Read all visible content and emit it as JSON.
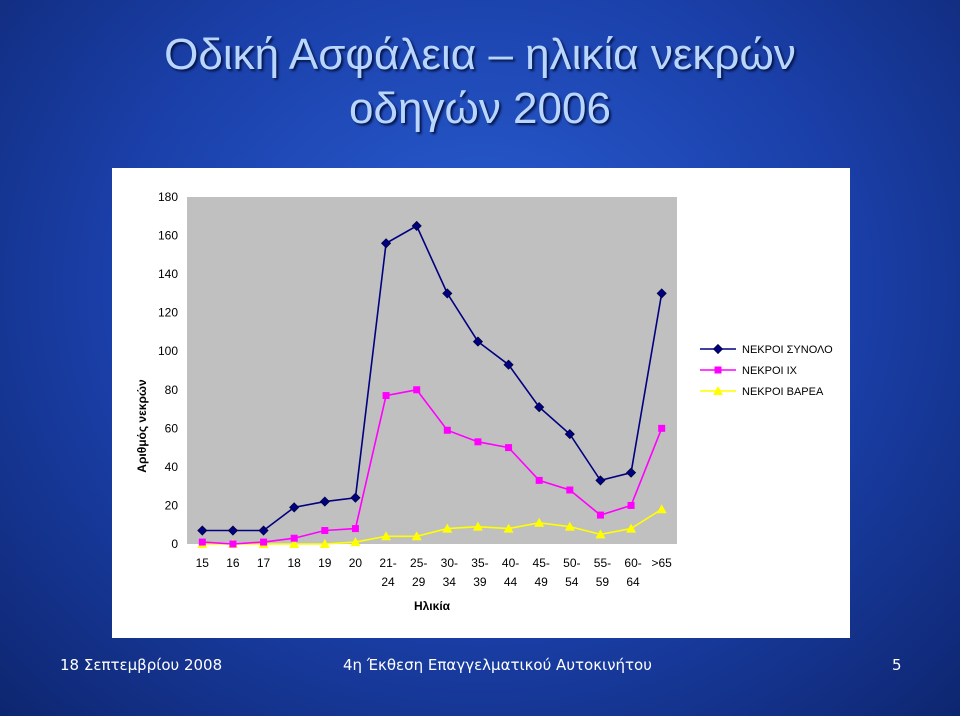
{
  "slide": {
    "title_line1": "Οδική Ασφάλεια – ηλικία νεκρών",
    "title_line2": "οδηγών 2006",
    "footer_date": "18 Σεπτεμβρίου 2008",
    "footer_event": "4η Έκθεση Επαγγελματικού Αυτοκινήτου",
    "page_number": "5"
  },
  "colors": {
    "background": "#1f4fc0",
    "title_text": "#b9d6ff",
    "plot_area": "#c0c0c0",
    "series_total": "#000080",
    "series_ix": "#ff00ff",
    "series_severe": "#ffff00"
  },
  "chart_data": {
    "type": "line",
    "title": "",
    "xlabel": "Ηλικία",
    "ylabel": "Αριθμός νεκρών",
    "ylim": [
      0,
      180
    ],
    "yticks": [
      "0",
      "20",
      "40",
      "60",
      "80",
      "100",
      "120",
      "140",
      "160",
      "180"
    ],
    "categories": [
      [
        "15"
      ],
      [
        "16"
      ],
      [
        "17"
      ],
      [
        "18"
      ],
      [
        "19"
      ],
      [
        "20"
      ],
      [
        "21-",
        "24"
      ],
      [
        "25-",
        "29"
      ],
      [
        "30-",
        "34"
      ],
      [
        "35-",
        "39"
      ],
      [
        "40-",
        "44"
      ],
      [
        "45-",
        "49"
      ],
      [
        "50-",
        "54"
      ],
      [
        "55-",
        "59"
      ],
      [
        "60-",
        "64"
      ],
      [
        ">65"
      ]
    ],
    "grid": false,
    "legend_position": "right",
    "series": [
      {
        "name": "ΝΕΚΡΟΙ ΣΥΝΟΛΟ",
        "marker": "diamond",
        "values": [
          7,
          7,
          7,
          19,
          22,
          24,
          156,
          165,
          130,
          105,
          93,
          71,
          57,
          33,
          37,
          130
        ]
      },
      {
        "name": "ΝΕΚΡΟΙ ΙΧ",
        "marker": "square",
        "values": [
          1,
          0,
          1,
          3,
          7,
          8,
          77,
          80,
          59,
          53,
          50,
          33,
          28,
          15,
          20,
          60
        ]
      },
      {
        "name": "ΝΕΚΡΟΙ ΒΑΡΕΑ",
        "marker": "triangle",
        "values": [
          0,
          0,
          0,
          0,
          0,
          1,
          4,
          4,
          8,
          9,
          8,
          11,
          9,
          5,
          8,
          18
        ]
      }
    ]
  }
}
